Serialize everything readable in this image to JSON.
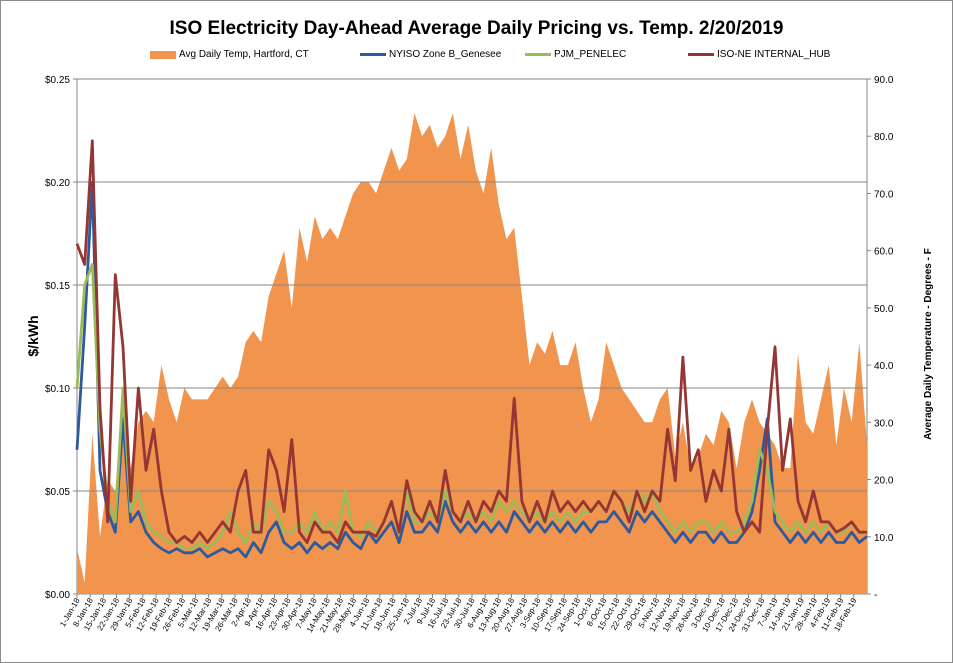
{
  "chart_data": {
    "type": "area",
    "title": "ISO Electricity Day-Ahead Average Daily Pricing vs. Temp. 2/20/2019",
    "ylabel": "$/kWh",
    "y2label": "Average Daily Temperature - Degrees - F",
    "ylim": [
      0,
      0.25
    ],
    "y2lim": [
      0,
      90
    ],
    "y_ticks": [
      "$0.00",
      "$0.05",
      "$0.10",
      "$0.15",
      "$0.20",
      "$0.25"
    ],
    "y2_ticks": [
      "-",
      "10.0",
      "20.0",
      "30.0",
      "40.0",
      "50.0",
      "60.0",
      "70.0",
      "80.0",
      "90.0"
    ],
    "x_ticks": [
      "1-Jan-18",
      "8-Jan-18",
      "15-Jan-18",
      "22-Jan-18",
      "29-Jan-18",
      "5-Feb-18",
      "12-Feb-18",
      "19-Feb-18",
      "26-Feb-18",
      "5-Mar-18",
      "12-Mar-18",
      "19-Mar-18",
      "26-Mar-18",
      "2-Apr-18",
      "9-Apr-18",
      "16-Apr-18",
      "23-Apr-18",
      "30-Apr-18",
      "7-May-18",
      "14-May-18",
      "21-May-18",
      "28-May-18",
      "4-Jun-18",
      "11-Jun-18",
      "18-Jun-18",
      "25-Jun-18",
      "2-Jul-18",
      "9-Jul-18",
      "16-Jul-18",
      "23-Jul-18",
      "30-Jul-18",
      "6-Aug-18",
      "13-Aug-18",
      "20-Aug-18",
      "27-Aug-18",
      "3-Sep-18",
      "10-Sep-18",
      "17-Sep-18",
      "24-Sep-18",
      "1-Oct-18",
      "8-Oct-18",
      "15-Oct-18",
      "22-Oct-18",
      "29-Oct-18",
      "5-Nov-18",
      "12-Nov-18",
      "19-Nov-18",
      "26-Nov-18",
      "3-Dec-18",
      "10-Dec-18",
      "17-Dec-18",
      "24-Dec-18",
      "31-Dec-18",
      "7-Jan-19",
      "14-Jan-19",
      "21-Jan-19",
      "28-Jan-19",
      "4-Feb-19",
      "11-Feb-19",
      "18-Feb-19"
    ],
    "legend_position": "top",
    "grid": true,
    "series": [
      {
        "name": "Avg Daily Temp, Hartford, CT",
        "kind": "area",
        "axis": "right",
        "color": "#f0944e",
        "values": [
          8,
          2,
          28,
          10,
          20,
          18,
          34,
          22,
          30,
          32,
          30,
          40,
          34,
          30,
          36,
          34,
          34,
          34,
          36,
          38,
          36,
          38,
          44,
          46,
          44,
          52,
          56,
          60,
          50,
          64,
          58,
          66,
          62,
          64,
          62,
          66,
          70,
          72,
          72,
          70,
          74,
          78,
          74,
          76,
          84,
          80,
          82,
          78,
          80,
          84,
          76,
          82,
          74,
          70,
          78,
          68,
          62,
          64,
          52,
          40,
          44,
          42,
          46,
          40,
          40,
          44,
          36,
          30,
          34,
          44,
          40,
          36,
          34,
          32,
          30,
          30,
          34,
          36,
          24,
          30,
          22,
          24,
          28,
          26,
          32,
          30,
          22,
          30,
          34,
          30,
          28,
          26,
          22,
          22,
          42,
          30,
          28,
          34,
          40,
          26,
          36,
          30,
          44,
          26
        ]
      },
      {
        "name": "NYISO Zone B_Genesee",
        "kind": "line",
        "axis": "left",
        "color": "#2e5a9c",
        "values": [
          0.07,
          0.13,
          0.2,
          0.06,
          0.04,
          0.03,
          0.085,
          0.035,
          0.04,
          0.03,
          0.025,
          0.022,
          0.02,
          0.022,
          0.02,
          0.02,
          0.022,
          0.018,
          0.02,
          0.022,
          0.02,
          0.022,
          0.018,
          0.025,
          0.02,
          0.03,
          0.035,
          0.025,
          0.022,
          0.025,
          0.02,
          0.025,
          0.022,
          0.025,
          0.022,
          0.03,
          0.025,
          0.022,
          0.03,
          0.025,
          0.03,
          0.035,
          0.025,
          0.04,
          0.03,
          0.03,
          0.035,
          0.03,
          0.045,
          0.035,
          0.03,
          0.035,
          0.03,
          0.035,
          0.03,
          0.035,
          0.03,
          0.04,
          0.035,
          0.03,
          0.035,
          0.03,
          0.035,
          0.03,
          0.035,
          0.03,
          0.035,
          0.03,
          0.035,
          0.035,
          0.04,
          0.035,
          0.03,
          0.04,
          0.035,
          0.04,
          0.035,
          0.03,
          0.025,
          0.03,
          0.025,
          0.03,
          0.03,
          0.025,
          0.03,
          0.025,
          0.025,
          0.03,
          0.04,
          0.06,
          0.085,
          0.035,
          0.03,
          0.025,
          0.03,
          0.025,
          0.03,
          0.025,
          0.03,
          0.025,
          0.025,
          0.03,
          0.025,
          0.028
        ]
      },
      {
        "name": "PJM_PENELEC",
        "kind": "line",
        "axis": "left",
        "color": "#9bbb59",
        "values": [
          0.1,
          0.15,
          0.16,
          0.08,
          0.045,
          0.035,
          0.1,
          0.04,
          0.05,
          0.035,
          0.03,
          0.028,
          0.025,
          0.025,
          0.022,
          0.022,
          0.025,
          0.022,
          0.025,
          0.03,
          0.04,
          0.03,
          0.025,
          0.035,
          0.03,
          0.045,
          0.04,
          0.03,
          0.03,
          0.035,
          0.03,
          0.04,
          0.03,
          0.035,
          0.03,
          0.05,
          0.03,
          0.028,
          0.035,
          0.03,
          0.035,
          0.045,
          0.03,
          0.05,
          0.035,
          0.035,
          0.04,
          0.035,
          0.05,
          0.04,
          0.035,
          0.04,
          0.035,
          0.04,
          0.035,
          0.045,
          0.04,
          0.045,
          0.04,
          0.035,
          0.04,
          0.035,
          0.04,
          0.035,
          0.04,
          0.035,
          0.04,
          0.04,
          0.045,
          0.04,
          0.05,
          0.045,
          0.04,
          0.05,
          0.045,
          0.05,
          0.04,
          0.035,
          0.03,
          0.035,
          0.03,
          0.035,
          0.035,
          0.03,
          0.035,
          0.03,
          0.03,
          0.035,
          0.045,
          0.07,
          0.06,
          0.04,
          0.035,
          0.03,
          0.035,
          0.03,
          0.035,
          0.03,
          0.035,
          0.03,
          0.03,
          0.035,
          0.03,
          0.03
        ]
      },
      {
        "name": "ISO-NE INTERNAL_HUB",
        "kind": "line",
        "axis": "left",
        "color": "#943634",
        "values": [
          0.17,
          0.16,
          0.22,
          0.09,
          0.035,
          0.155,
          0.12,
          0.045,
          0.1,
          0.06,
          0.08,
          0.05,
          0.03,
          0.025,
          0.028,
          0.025,
          0.03,
          0.025,
          0.03,
          0.035,
          0.03,
          0.05,
          0.06,
          0.03,
          0.03,
          0.07,
          0.06,
          0.04,
          0.075,
          0.03,
          0.025,
          0.035,
          0.03,
          0.03,
          0.025,
          0.035,
          0.03,
          0.03,
          0.03,
          0.028,
          0.035,
          0.045,
          0.03,
          0.055,
          0.04,
          0.035,
          0.045,
          0.035,
          0.06,
          0.04,
          0.035,
          0.045,
          0.035,
          0.045,
          0.04,
          0.05,
          0.045,
          0.095,
          0.045,
          0.035,
          0.045,
          0.035,
          0.05,
          0.04,
          0.045,
          0.04,
          0.045,
          0.04,
          0.045,
          0.04,
          0.05,
          0.045,
          0.035,
          0.05,
          0.04,
          0.05,
          0.045,
          0.08,
          0.055,
          0.115,
          0.06,
          0.07,
          0.045,
          0.06,
          0.05,
          0.08,
          0.04,
          0.03,
          0.035,
          0.03,
          0.08,
          0.12,
          0.06,
          0.085,
          0.045,
          0.035,
          0.05,
          0.035,
          0.035,
          0.03,
          0.032,
          0.035,
          0.03,
          0.03
        ]
      }
    ]
  }
}
